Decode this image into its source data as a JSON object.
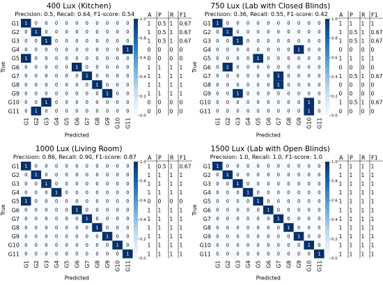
{
  "chart_data": [
    {
      "type": "heatmap",
      "title": "400 Lux (Kitchen)",
      "subtitle": "Precision: 0.5, Recall: 0.64, F1-score: 0.54",
      "xlabel": "Predicted",
      "ylabel": "True",
      "labels": [
        "G1",
        "G2",
        "G3",
        "G4",
        "G5",
        "G6",
        "G7",
        "G8",
        "G9",
        "G10",
        "G11"
      ],
      "matrix": [
        [
          1,
          0,
          0,
          0,
          0,
          0,
          0,
          0,
          0,
          0,
          0
        ],
        [
          0,
          1,
          0,
          0,
          0,
          0,
          0,
          0,
          0,
          0,
          0
        ],
        [
          0,
          0,
          1,
          0,
          0,
          0,
          0,
          0,
          0,
          0,
          0
        ],
        [
          0,
          0,
          0,
          0,
          0,
          0,
          0,
          0,
          0,
          0,
          1
        ],
        [
          1,
          0,
          0,
          0,
          0,
          0,
          0,
          0,
          0,
          0,
          0
        ],
        [
          0,
          0,
          0,
          0,
          0,
          1,
          0,
          0,
          0,
          0,
          0
        ],
        [
          0,
          0,
          0,
          0,
          0,
          0,
          1,
          0,
          0,
          0,
          0
        ],
        [
          0,
          0,
          0,
          0,
          0,
          0,
          0,
          1,
          0,
          0,
          0
        ],
        [
          0,
          0,
          0,
          0,
          0,
          0,
          0,
          0,
          1,
          0,
          0
        ],
        [
          0,
          0,
          1,
          0,
          0,
          0,
          0,
          0,
          0,
          0,
          0
        ],
        [
          0,
          1,
          0,
          0,
          0,
          0,
          0,
          0,
          0,
          0,
          0
        ]
      ],
      "colorbar_ticks": [
        "0.0",
        "0.2",
        "0.4",
        "0.6",
        "0.8",
        "1.0"
      ],
      "metrics_header": [
        "A",
        "P",
        "R",
        "F1"
      ],
      "metrics": [
        [
          "1",
          "0.5",
          "1",
          "0.67"
        ],
        [
          "1",
          "0.5",
          "1",
          "0.67"
        ],
        [
          "1",
          "0.5",
          "1",
          "0.67"
        ],
        [
          "0",
          "0",
          "0",
          "0"
        ],
        [
          "0",
          "0",
          "0",
          "0"
        ],
        [
          "1",
          "1",
          "1",
          "1"
        ],
        [
          "1",
          "1",
          "1",
          "1"
        ],
        [
          "1",
          "1",
          "1",
          "1"
        ],
        [
          "1",
          "1",
          "1",
          "1"
        ],
        [
          "0",
          "0",
          "0",
          "0"
        ],
        [
          "0",
          "0",
          "0",
          "0"
        ]
      ]
    },
    {
      "type": "heatmap",
      "title": "750 Lux (Lab with Closed Blinds)",
      "subtitle": "Precision: 0.36, Recall: 0.55, F1-score: 0.42",
      "xlabel": "Predicted",
      "ylabel": "True",
      "labels": [
        "G1",
        "G2",
        "G3",
        "G4",
        "G5",
        "G6",
        "G7",
        "G8",
        "G9",
        "G10",
        "G11"
      ],
      "matrix": [
        [
          1,
          0,
          0,
          0,
          0,
          0,
          0,
          0,
          0,
          0,
          0
        ],
        [
          0,
          1,
          0,
          0,
          0,
          0,
          0,
          0,
          0,
          0,
          0
        ],
        [
          0,
          0,
          1,
          0,
          0,
          0,
          0,
          0,
          0,
          0,
          0
        ],
        [
          0,
          0,
          0,
          0,
          0,
          0,
          0,
          0,
          1,
          0,
          0
        ],
        [
          0,
          0,
          0,
          0,
          1,
          0,
          0,
          0,
          0,
          0,
          0
        ],
        [
          0,
          1,
          0,
          0,
          0,
          0,
          0,
          0,
          0,
          0,
          0
        ],
        [
          0,
          0,
          0,
          0,
          0,
          0,
          1,
          0,
          0,
          0,
          0
        ],
        [
          0,
          0,
          0,
          0,
          0,
          0,
          1,
          0,
          0,
          0,
          0
        ],
        [
          0,
          0,
          1,
          0,
          0,
          0,
          0,
          0,
          0,
          0,
          0
        ],
        [
          0,
          0,
          0,
          0,
          0,
          0,
          0,
          0,
          0,
          1,
          0
        ],
        [
          0,
          0,
          0,
          0,
          0,
          0,
          0,
          0,
          0,
          1,
          0
        ]
      ],
      "colorbar_ticks": [
        "0.0",
        "0.2",
        "0.4",
        "0.6",
        "0.8",
        "1.0"
      ],
      "metrics_header": [
        "A",
        "P",
        "R",
        "F1"
      ],
      "metrics": [
        [
          "1",
          "1",
          "1",
          "1"
        ],
        [
          "1",
          "0.5",
          "1",
          "0.67"
        ],
        [
          "1",
          "0.5",
          "1",
          "0.67"
        ],
        [
          "0",
          "0",
          "0",
          "0"
        ],
        [
          "1",
          "1",
          "1",
          "1"
        ],
        [
          "0",
          "0",
          "0",
          "0"
        ],
        [
          "1",
          "0.5",
          "1",
          "0.67"
        ],
        [
          "0",
          "0",
          "0",
          "0"
        ],
        [
          "0",
          "0",
          "0",
          "0"
        ],
        [
          "1",
          "0.5",
          "1",
          "0.67"
        ],
        [
          "0",
          "0",
          "0",
          "0"
        ]
      ]
    },
    {
      "type": "heatmap",
      "title": "1000 Lux (Living Room)",
      "subtitle": "Precision: 0.86, Recall: 0.90, F1-score: 0.87",
      "xlabel": "Predicted",
      "ylabel": "True",
      "labels": [
        "G1",
        "G2",
        "G3",
        "G4",
        "G5",
        "G6",
        "G7",
        "G8",
        "G9",
        "G10",
        "G11"
      ],
      "matrix": [
        [
          1,
          0,
          0,
          0,
          0,
          0,
          0,
          0,
          0,
          0,
          0
        ],
        [
          0,
          1,
          0,
          0,
          0,
          0,
          0,
          0,
          0,
          0,
          0
        ],
        [
          0,
          0,
          1,
          0,
          0,
          0,
          0,
          0,
          0,
          0,
          0
        ],
        [
          0,
          0,
          0,
          1,
          0,
          0,
          0,
          0,
          0,
          0,
          0
        ],
        [
          1,
          0,
          0,
          0,
          0,
          0,
          0,
          0,
          0,
          0,
          0
        ],
        [
          0,
          0,
          0,
          0,
          0,
          1,
          0,
          0,
          0,
          0,
          0
        ],
        [
          0,
          0,
          0,
          0,
          0,
          0,
          1,
          0,
          0,
          0,
          0
        ],
        [
          0,
          0,
          0,
          0,
          0,
          0,
          0,
          1,
          0,
          0,
          0
        ],
        [
          0,
          0,
          0,
          0,
          0,
          0,
          0,
          0,
          1,
          0,
          0
        ],
        [
          0,
          0,
          0,
          0,
          0,
          0,
          0,
          0,
          0,
          1,
          0
        ],
        [
          0,
          0,
          0,
          0,
          0,
          0,
          0,
          0,
          0,
          0,
          1
        ]
      ],
      "colorbar_ticks": [
        "0.0",
        "0.2",
        "0.4",
        "0.6",
        "0.8",
        "1.0"
      ],
      "metrics_header": [
        "A",
        "P",
        "R",
        "F1"
      ],
      "metrics": [
        [
          "1",
          "0.5",
          "1",
          "0.67"
        ],
        [
          "1",
          "1",
          "1",
          "1"
        ],
        [
          "1",
          "1",
          "1",
          "1"
        ],
        [
          "1",
          "1",
          "1",
          "1"
        ],
        [
          "0",
          "0",
          "0",
          "0"
        ],
        [
          "1",
          "1",
          "1",
          "1"
        ],
        [
          "1",
          "1",
          "1",
          "1"
        ],
        [
          "1",
          "1",
          "1",
          "1"
        ],
        [
          "1",
          "1",
          "1",
          "1"
        ],
        [
          "1",
          "1",
          "1",
          "1"
        ],
        [
          "1",
          "1",
          "1",
          "1"
        ]
      ]
    },
    {
      "type": "heatmap",
      "title": "1500 Lux (Lab with Open Blinds)",
      "subtitle": "Precision: 1.0, Recall: 1.0, F1-score: 1.0",
      "xlabel": "Predicted",
      "ylabel": "True",
      "labels": [
        "G1",
        "G2",
        "G3",
        "G4",
        "G5",
        "G6",
        "G7",
        "G8",
        "G9",
        "G10",
        "G11"
      ],
      "matrix": [
        [
          1,
          0,
          0,
          0,
          0,
          0,
          0,
          0,
          0,
          0,
          0
        ],
        [
          0,
          1,
          0,
          0,
          0,
          0,
          0,
          0,
          0,
          0,
          0
        ],
        [
          0,
          0,
          1,
          0,
          0,
          0,
          0,
          0,
          0,
          0,
          0
        ],
        [
          0,
          0,
          0,
          1,
          0,
          0,
          0,
          0,
          0,
          0,
          0
        ],
        [
          0,
          0,
          0,
          0,
          1,
          0,
          0,
          0,
          0,
          0,
          0
        ],
        [
          0,
          0,
          0,
          0,
          0,
          1,
          0,
          0,
          0,
          0,
          0
        ],
        [
          0,
          0,
          0,
          0,
          0,
          0,
          1,
          0,
          0,
          0,
          0
        ],
        [
          0,
          0,
          0,
          0,
          0,
          0,
          0,
          1,
          0,
          0,
          0
        ],
        [
          0,
          0,
          0,
          0,
          0,
          0,
          0,
          0,
          1,
          0,
          0
        ],
        [
          0,
          0,
          0,
          0,
          0,
          0,
          0,
          0,
          0,
          1,
          0
        ],
        [
          0,
          0,
          0,
          0,
          0,
          0,
          0,
          0,
          0,
          0,
          1
        ]
      ],
      "colorbar_ticks": [
        "0.0",
        "0.2",
        "0.4",
        "0.6",
        "0.8",
        "1.0"
      ],
      "metrics_header": [
        "A",
        "P",
        "R",
        "F1"
      ],
      "metrics": [
        [
          "1",
          "1",
          "1",
          "1"
        ],
        [
          "1",
          "1",
          "1",
          "1"
        ],
        [
          "1",
          "1",
          "1",
          "1"
        ],
        [
          "1",
          "1",
          "1",
          "1"
        ],
        [
          "1",
          "1",
          "1",
          "1"
        ],
        [
          "1",
          "1",
          "1",
          "1"
        ],
        [
          "1",
          "1",
          "1",
          "1"
        ],
        [
          "1",
          "1",
          "1",
          "1"
        ],
        [
          "1",
          "1",
          "1",
          "1"
        ],
        [
          "1",
          "1",
          "1",
          "1"
        ],
        [
          "1",
          "1",
          "1",
          "1"
        ]
      ]
    }
  ],
  "colors": {
    "cell_high": "#08306b",
    "cell_low": "#f7fbff",
    "text_on_dark": "#ffffff",
    "text_on_light": "#000000"
  }
}
